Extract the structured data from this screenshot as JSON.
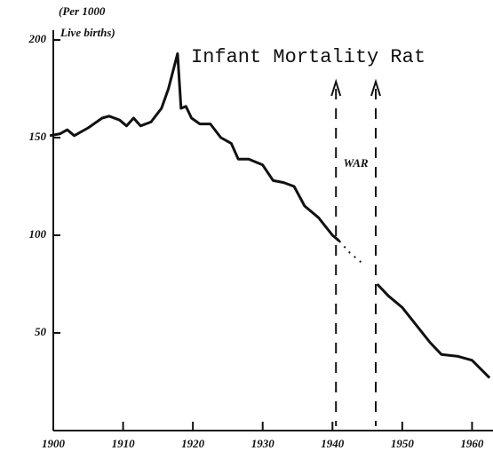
{
  "chart_data": {
    "type": "line",
    "title": "Infant Mortality Rat",
    "annotations": [
      "(Per 1000",
      "Live births)",
      "WAR"
    ],
    "war_lines": [
      1940.5,
      1946.2
    ],
    "xlim": [
      1900,
      1963
    ],
    "xticks": [
      1900,
      1910,
      1920,
      1930,
      1940,
      1950,
      1960
    ],
    "ylim": [
      0,
      205
    ],
    "yticks": [
      50,
      100,
      150,
      200
    ],
    "series": [
      {
        "color": "#111",
        "dash": false,
        "x": [
          1899.5,
          1901,
          1902,
          1903,
          1905,
          1907,
          1908,
          1909.5,
          1910.5,
          1911.5,
          1912.5,
          1914,
          1915.5,
          1916.5,
          1917.3,
          1917.8,
          1918.3,
          1919,
          1919.8,
          1921,
          1922.5,
          1924,
          1925.5,
          1926.5,
          1928,
          1930,
          1931.5,
          1933,
          1934.5,
          1936,
          1938,
          1940,
          1941
        ],
        "values": [
          151,
          152,
          154,
          151,
          155,
          160,
          161,
          159,
          156,
          160,
          156,
          158,
          165,
          175,
          186,
          193,
          165,
          166,
          160,
          157,
          157,
          150,
          147,
          139,
          139,
          136,
          128,
          127,
          125,
          115,
          109,
          100,
          97
        ]
      },
      {
        "color": "#111",
        "dash": true,
        "x": [
          1941,
          1942.5,
          1944.5
        ],
        "values": [
          97,
          91,
          85
        ]
      },
      {
        "color": "#111",
        "dash": false,
        "x": [
          1946.4,
          1948,
          1950,
          1952,
          1954,
          1955.6,
          1958,
          1960,
          1962.5
        ],
        "values": [
          75,
          69,
          63,
          54,
          45,
          39,
          38,
          36,
          27
        ]
      }
    ]
  }
}
